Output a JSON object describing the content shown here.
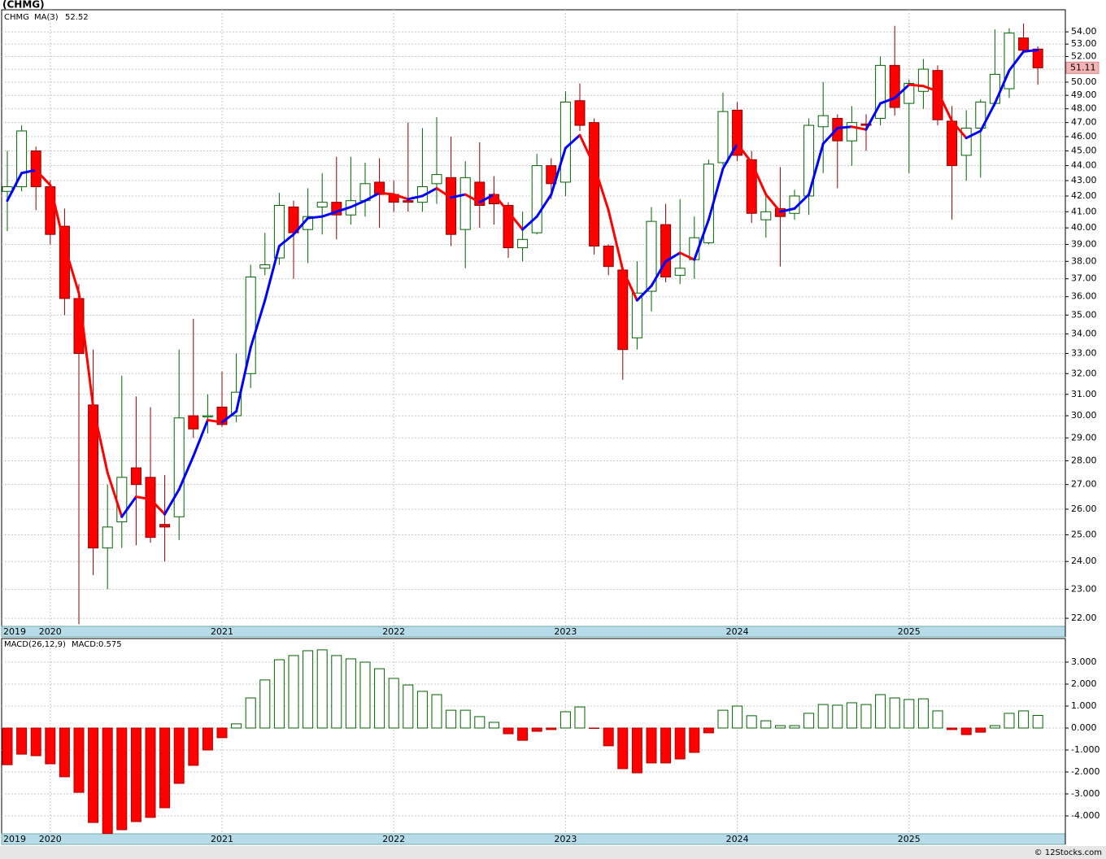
{
  "chart_data": [
    {
      "type": "candlestick",
      "title": "(CHMG)",
      "log_scale": true,
      "grid": true,
      "categories": [
        "2019",
        null,
        null,
        "2020",
        null,
        null,
        null,
        null,
        null,
        null,
        null,
        null,
        null,
        null,
        null,
        "2021",
        null,
        null,
        null,
        null,
        null,
        null,
        null,
        null,
        null,
        null,
        null,
        "2022",
        null,
        null,
        null,
        null,
        null,
        null,
        null,
        null,
        null,
        null,
        null,
        "2023",
        null,
        null,
        null,
        null,
        null,
        null,
        null,
        null,
        null,
        null,
        null,
        "2024",
        null,
        null,
        null,
        null,
        null,
        null,
        null,
        null,
        null,
        null,
        null,
        "2025",
        null,
        null,
        null,
        null,
        null,
        null,
        null,
        null,
        null
      ],
      "ohlc": {
        "name": "CHMG",
        "up_color": "#006400",
        "down_color": "#ff0000",
        "open": [
          42.3,
          42.6,
          45,
          42.6,
          40.1,
          35.9,
          30.5,
          24.5,
          25.5,
          27.7,
          27.3,
          25.4,
          25.7,
          30,
          29.95,
          30.4,
          30,
          32,
          37.6,
          38.2,
          41.3,
          39.9,
          41.3,
          41.6,
          40.8,
          41.7,
          42.9,
          42.1,
          41.7,
          41.6,
          42.8,
          43.2,
          39.9,
          42.9,
          42.1,
          41.4,
          38.8,
          39.7,
          44,
          42.9,
          48.6,
          47,
          38.9,
          37.5,
          33.8,
          36.3,
          40.2,
          37.2,
          38.1,
          39.1,
          44.2,
          47.9,
          44.4,
          40.5,
          41.2,
          40.9,
          42,
          46.7,
          47.3,
          45.7,
          46.9,
          47.3,
          51.3,
          48.4,
          49.3,
          50.9,
          47.1,
          44.7,
          46.6,
          48.4,
          49.5,
          53.5,
          52.6
        ],
        "high": [
          45,
          46.8,
          45.3,
          43,
          41.2,
          36.7,
          33.2,
          27,
          31.9,
          30.9,
          30.4,
          27.4,
          33.2,
          34.8,
          31,
          32.1,
          33,
          37.8,
          39.7,
          42.2,
          41.7,
          42.5,
          43.5,
          44.6,
          44.6,
          44.2,
          44.5,
          43,
          47,
          46.6,
          47.4,
          46,
          44.3,
          45.6,
          43.3,
          41.6,
          41,
          44.8,
          44.5,
          49.3,
          49.9,
          47.3,
          39,
          37.5,
          38,
          41.3,
          41.5,
          41.8,
          40.7,
          44.4,
          49.2,
          48.5,
          45,
          42,
          43.9,
          42.4,
          47.3,
          50,
          47.6,
          48.2,
          47.6,
          52,
          54.5,
          50.2,
          51.8,
          51.3,
          48.2,
          47.9,
          48.7,
          54.2,
          54.3,
          54.7,
          52.8
        ],
        "low": [
          39.8,
          42.3,
          41.1,
          39,
          35,
          21.8,
          23.5,
          23,
          24.5,
          24.6,
          24.7,
          24,
          24.8,
          29,
          29.2,
          29.5,
          29.7,
          31.3,
          37.2,
          37.8,
          37,
          37.9,
          39.6,
          39.3,
          40.2,
          40.7,
          40,
          41,
          41,
          41,
          41.5,
          38.9,
          37.6,
          40,
          40.2,
          38.2,
          38,
          39.6,
          41.8,
          42,
          46.4,
          38.4,
          37.2,
          31.7,
          33.2,
          35.2,
          36.8,
          36.7,
          37,
          39,
          44,
          44.3,
          40.3,
          39.4,
          37.7,
          40.5,
          40.8,
          43.5,
          42.5,
          44,
          45,
          46.8,
          47.5,
          43.5,
          48,
          46.8,
          40.5,
          43,
          43.2,
          48.2,
          48.8,
          52.3,
          49.8
        ],
        "close": [
          42.6,
          46.4,
          42.6,
          39.6,
          35.9,
          33,
          24.5,
          25.3,
          27.3,
          27,
          24.9,
          25.3,
          29.9,
          29.4,
          30,
          29.6,
          31.1,
          37.1,
          37.8,
          41.4,
          39.7,
          40.7,
          41.6,
          40.8,
          41.7,
          42.8,
          42.1,
          41.6,
          41.6,
          42.6,
          43.4,
          39.6,
          43.2,
          41.4,
          41.5,
          38.8,
          39.3,
          44,
          42.8,
          48.5,
          46.8,
          38.9,
          37.7,
          33.2,
          36.2,
          40.4,
          37.1,
          37.6,
          39.4,
          44.1,
          47.8,
          44.7,
          40.9,
          41,
          40.7,
          42,
          46.8,
          47.5,
          45.7,
          47,
          46.8,
          51.3,
          48.1,
          49.9,
          51,
          47.2,
          44,
          46.6,
          48.5,
          50.6,
          53.9,
          52.5,
          51.11
        ]
      },
      "series": [
        {
          "name": "MA(3)",
          "color": "#0000ff",
          "down_color": "#ff0000",
          "values": [
            41.7,
            43.5,
            43.7,
            42.7,
            38.9,
            36.2,
            30.4,
            27.5,
            25.7,
            26.5,
            26.4,
            25.8,
            26.8,
            28.2,
            29.8,
            29.7,
            30.2,
            33.3,
            35.8,
            38.9,
            39.6,
            40.6,
            40.7,
            41.0,
            41.3,
            41.7,
            42.2,
            42.1,
            41.8,
            42.0,
            42.5,
            41.9,
            42.1,
            41.6,
            42.1,
            41.0,
            39.9,
            40.7,
            42.1,
            45.2,
            46.1,
            44.0,
            41.1,
            37.5,
            35.8,
            36.6,
            38.0,
            38.5,
            38.1,
            40.5,
            43.8,
            45.5,
            44.2,
            42.1,
            41.0,
            41.2,
            42.1,
            45.5,
            46.6,
            46.7,
            46.5,
            48.4,
            48.8,
            49.8,
            49.7,
            49.3,
            47.1,
            45.9,
            46.4,
            48.4,
            50.9,
            52.4,
            52.52
          ]
        }
      ],
      "ylim": [
        21.73,
        55.86
      ],
      "yticks": [
        {
          "value": 22,
          "label": "22.00"
        },
        {
          "value": 23,
          "label": "23.00"
        },
        {
          "value": 24,
          "label": "24.00"
        },
        {
          "value": 25,
          "label": "25.00"
        },
        {
          "value": 26,
          "label": "26.00"
        },
        {
          "value": 27,
          "label": "27.00"
        },
        {
          "value": 28,
          "label": "28.00"
        },
        {
          "value": 29,
          "label": "29.00"
        },
        {
          "value": 30,
          "label": "30.00"
        },
        {
          "value": 31,
          "label": "31.00"
        },
        {
          "value": 32,
          "label": "32.00"
        },
        {
          "value": 33,
          "label": "33.00"
        },
        {
          "value": 34,
          "label": "34.00"
        },
        {
          "value": 35,
          "label": "35.00"
        },
        {
          "value": 36,
          "label": "36.00"
        },
        {
          "value": 37,
          "label": "37.00"
        },
        {
          "value": 38,
          "label": "38.00"
        },
        {
          "value": 39,
          "label": "39.00"
        },
        {
          "value": 40,
          "label": "40.00"
        },
        {
          "value": 41,
          "label": "41.00"
        },
        {
          "value": 42,
          "label": "42.00"
        },
        {
          "value": 43,
          "label": "43.00"
        },
        {
          "value": 44,
          "label": "44.00"
        },
        {
          "value": 45,
          "label": "45.00"
        },
        {
          "value": 46,
          "label": "46.00"
        },
        {
          "value": 47,
          "label": "47.00"
        },
        {
          "value": 48,
          "label": "48.00"
        },
        {
          "value": 49,
          "label": "49.00"
        },
        {
          "value": 50,
          "label": "50.00"
        },
        {
          "value": 51,
          "label": "51.00"
        },
        {
          "value": 52,
          "label": "52.00"
        },
        {
          "value": 53,
          "label": "53.00"
        },
        {
          "value": 54,
          "label": "54.00"
        }
      ]
    },
    {
      "type": "bar",
      "title": "MACD(26,12,9)",
      "grid": true,
      "categories": [
        "2019",
        null,
        null,
        "2020",
        null,
        null,
        null,
        null,
        null,
        null,
        null,
        null,
        null,
        null,
        null,
        "2021",
        null,
        null,
        null,
        null,
        null,
        null,
        null,
        null,
        null,
        null,
        null,
        "2022",
        null,
        null,
        null,
        null,
        null,
        null,
        null,
        null,
        null,
        null,
        null,
        "2023",
        null,
        null,
        null,
        null,
        null,
        null,
        null,
        null,
        null,
        null,
        null,
        "2024",
        null,
        null,
        null,
        null,
        null,
        null,
        null,
        null,
        null,
        null,
        null,
        "2025",
        null,
        null,
        null,
        null,
        null,
        null,
        null,
        null,
        null
      ],
      "series": [
        {
          "name": "MACD:",
          "color": "#006400",
          "down_color": "#ff0000",
          "values": [
            -1.67,
            -1.19,
            -1.26,
            -1.63,
            -2.22,
            -2.93,
            -4.3,
            -4.8,
            -4.63,
            -4.26,
            -4.07,
            -3.63,
            -2.52,
            -1.7,
            -1.0,
            -0.44,
            0.19,
            1.37,
            2.19,
            3.11,
            3.3,
            3.52,
            3.56,
            3.3,
            3.15,
            3.0,
            2.7,
            2.26,
            1.96,
            1.67,
            1.52,
            0.81,
            0.81,
            0.52,
            0.26,
            -0.26,
            -0.56,
            -0.15,
            -0.07,
            0.74,
            0.96,
            -0.02,
            -0.81,
            -1.85,
            -2.04,
            -1.59,
            -1.59,
            -1.41,
            -1.11,
            -0.22,
            0.81,
            1.0,
            0.56,
            0.33,
            0.11,
            0.11,
            0.67,
            1.07,
            1.04,
            1.15,
            1.07,
            1.52,
            1.37,
            1.3,
            1.33,
            0.78,
            -0.07,
            -0.3,
            -0.19,
            0.11,
            0.67,
            0.78,
            0.575
          ]
        }
      ],
      "ylim": [
        -4.815,
        4.074
      ],
      "yticks": [
        {
          "value": -4,
          "label": "-4.000"
        },
        {
          "value": -3,
          "label": "-3.000"
        },
        {
          "value": -2,
          "label": "-2.000"
        },
        {
          "value": -1,
          "label": "-1.000"
        },
        {
          "value": 0,
          "label": "0.000"
        },
        {
          "value": 1,
          "label": "1.000"
        },
        {
          "value": 2,
          "label": "2.000"
        },
        {
          "value": 3,
          "label": "3.000"
        }
      ]
    }
  ],
  "credit": "© 12Stocks.com"
}
